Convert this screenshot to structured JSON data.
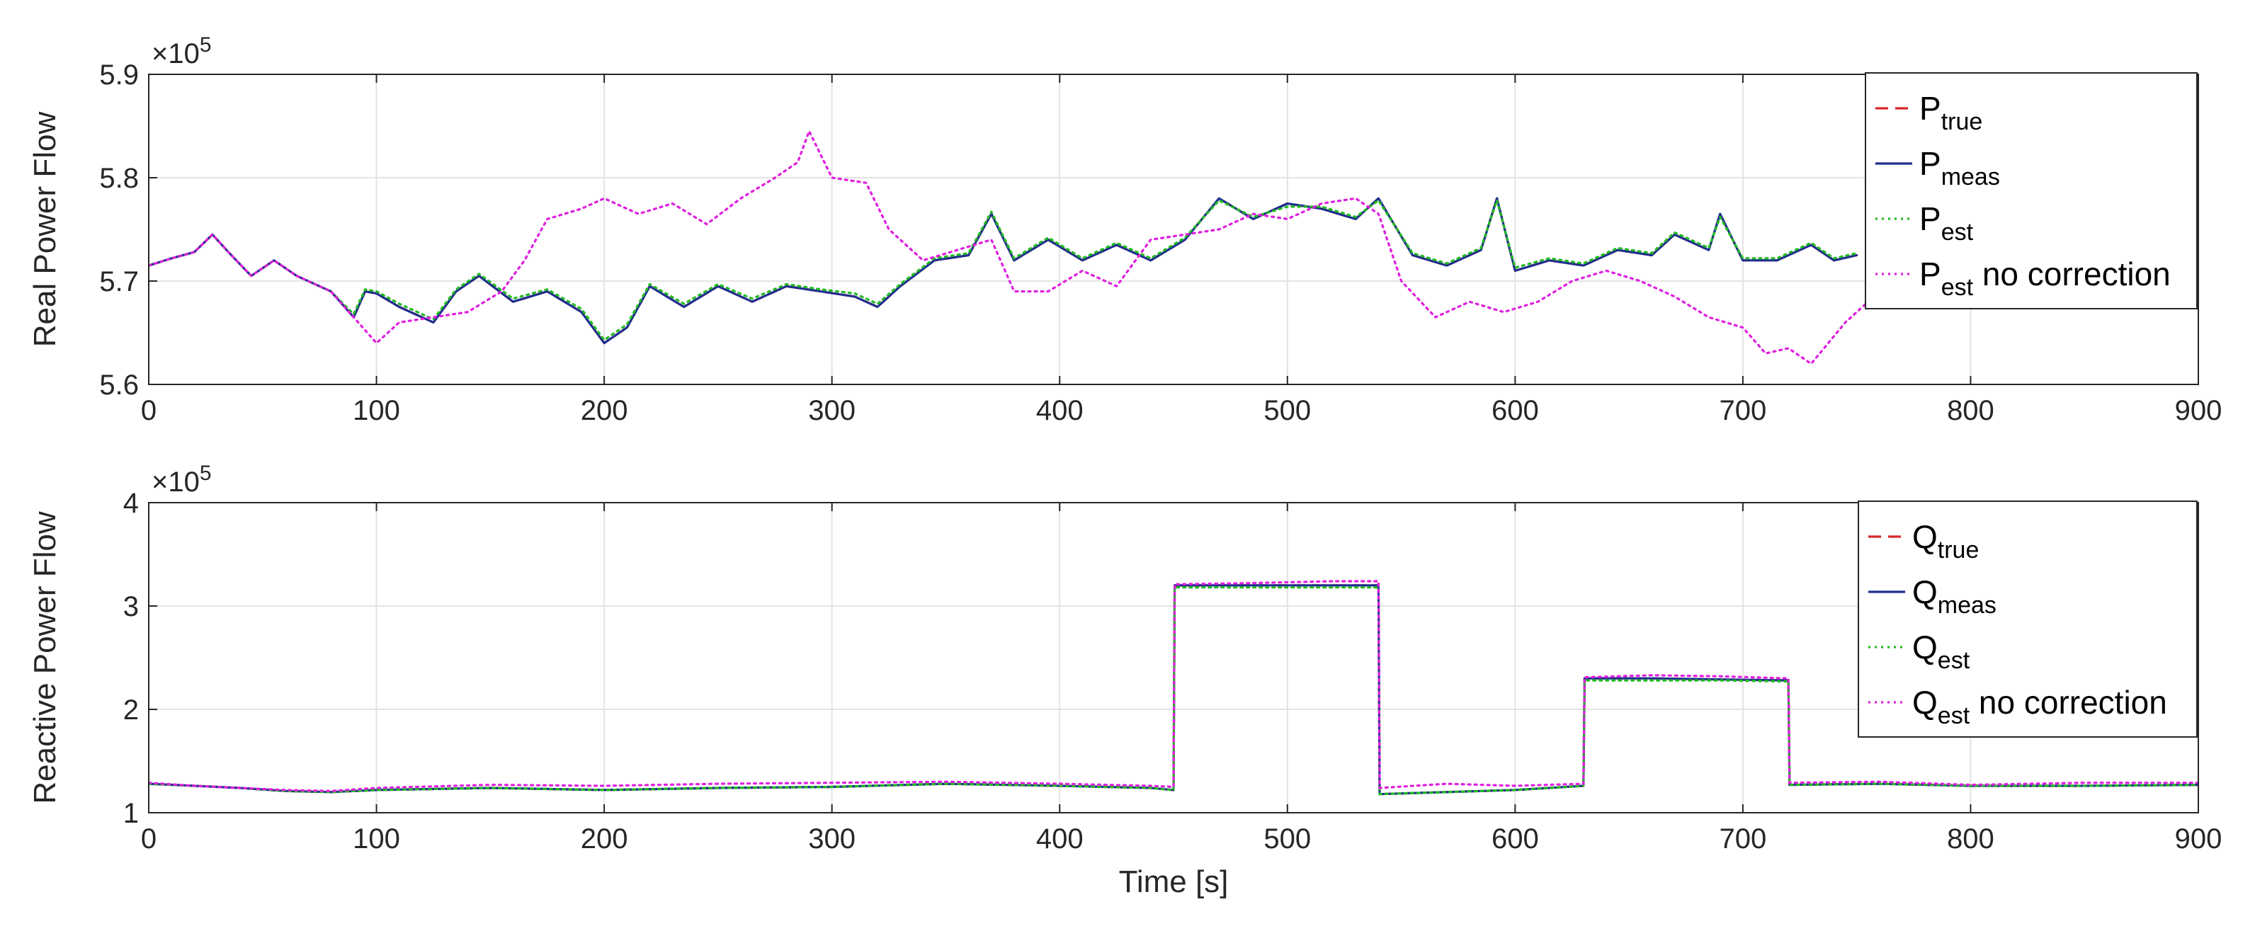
{
  "chart_data": [
    {
      "type": "line",
      "ylabel": "Real Power Flow",
      "xlabel": "",
      "exponent": "×10",
      "exponent_power": "5",
      "xlim": [
        0,
        900
      ],
      "ylim": [
        5.6,
        5.9
      ],
      "xticks": [
        "0",
        "100",
        "200",
        "300",
        "400",
        "500",
        "600",
        "700",
        "800",
        "900"
      ],
      "yticks": [
        "5.6",
        "5.7",
        "5.8",
        "5.9"
      ],
      "grid": true,
      "legend_position": "top-right",
      "legend": [
        {
          "base": "P",
          "sub": "true",
          "suffix": ""
        },
        {
          "base": "P",
          "sub": "meas",
          "suffix": ""
        },
        {
          "base": "P",
          "sub": "est",
          "suffix": ""
        },
        {
          "base": "P",
          "sub": "est",
          "suffix": " no correction"
        }
      ],
      "series": [
        {
          "color": "#d62728",
          "dash": "dashed",
          "x": [
            0,
            10,
            20,
            28,
            35,
            45,
            55,
            65,
            80,
            90,
            95,
            100,
            110,
            125,
            135,
            145,
            160,
            175,
            190,
            200,
            210,
            220,
            235,
            250,
            265,
            280,
            295,
            310,
            320,
            330,
            345,
            360,
            370,
            380,
            395,
            410,
            425,
            440,
            455,
            470,
            485,
            500,
            515,
            530,
            540,
            555,
            570,
            585,
            592,
            600,
            615,
            630,
            645,
            660,
            670,
            685,
            690,
            700,
            715,
            730,
            740,
            750
          ],
          "y": [
            5.715,
            5.722,
            5.728,
            5.745,
            5.728,
            5.705,
            5.72,
            5.705,
            5.69,
            5.665,
            5.69,
            5.688,
            5.675,
            5.66,
            5.69,
            5.705,
            5.68,
            5.69,
            5.67,
            5.64,
            5.655,
            5.695,
            5.675,
            5.695,
            5.68,
            5.695,
            5.69,
            5.685,
            5.675,
            5.695,
            5.72,
            5.725,
            5.765,
            5.72,
            5.74,
            5.72,
            5.735,
            5.72,
            5.74,
            5.78,
            5.76,
            5.775,
            5.77,
            5.76,
            5.78,
            5.725,
            5.715,
            5.73,
            5.78,
            5.71,
            5.72,
            5.715,
            5.73,
            5.725,
            5.745,
            5.73,
            5.765,
            5.72,
            5.72,
            5.735,
            5.72,
            5.725
          ]
        },
        {
          "color": "#1f2e8f",
          "dash": "solid",
          "x": [
            0,
            10,
            20,
            28,
            35,
            45,
            55,
            65,
            80,
            90,
            95,
            100,
            110,
            125,
            135,
            145,
            160,
            175,
            190,
            200,
            210,
            220,
            235,
            250,
            265,
            280,
            295,
            310,
            320,
            330,
            345,
            360,
            370,
            380,
            395,
            410,
            425,
            440,
            455,
            470,
            485,
            500,
            515,
            530,
            540,
            555,
            570,
            585,
            592,
            600,
            615,
            630,
            645,
            660,
            670,
            685,
            690,
            700,
            715,
            730,
            740,
            750
          ],
          "y": [
            5.715,
            5.722,
            5.728,
            5.745,
            5.728,
            5.705,
            5.72,
            5.705,
            5.69,
            5.665,
            5.69,
            5.688,
            5.675,
            5.66,
            5.69,
            5.705,
            5.68,
            5.69,
            5.67,
            5.64,
            5.655,
            5.695,
            5.675,
            5.695,
            5.68,
            5.695,
            5.69,
            5.685,
            5.675,
            5.695,
            5.72,
            5.725,
            5.765,
            5.72,
            5.74,
            5.72,
            5.735,
            5.72,
            5.74,
            5.78,
            5.76,
            5.775,
            5.77,
            5.76,
            5.78,
            5.725,
            5.715,
            5.73,
            5.78,
            5.71,
            5.72,
            5.715,
            5.73,
            5.725,
            5.745,
            5.73,
            5.765,
            5.72,
            5.72,
            5.735,
            5.72,
            5.725
          ]
        },
        {
          "color": "#22bb22",
          "dash": "dotted",
          "x": [
            0,
            10,
            20,
            28,
            35,
            45,
            55,
            65,
            80,
            90,
            95,
            100,
            110,
            125,
            135,
            145,
            160,
            175,
            190,
            200,
            210,
            220,
            235,
            250,
            265,
            280,
            295,
            310,
            320,
            330,
            345,
            360,
            370,
            380,
            395,
            410,
            425,
            440,
            455,
            470,
            485,
            500,
            515,
            530,
            540,
            555,
            570,
            585,
            592,
            600,
            615,
            630,
            645,
            660,
            670,
            685,
            690,
            700,
            715,
            730,
            740,
            750
          ],
          "y": [
            5.715,
            5.722,
            5.728,
            5.745,
            5.728,
            5.705,
            5.72,
            5.705,
            5.69,
            5.668,
            5.692,
            5.69,
            5.678,
            5.663,
            5.692,
            5.707,
            5.683,
            5.692,
            5.673,
            5.643,
            5.658,
            5.697,
            5.678,
            5.697,
            5.683,
            5.697,
            5.692,
            5.688,
            5.678,
            5.697,
            5.722,
            5.727,
            5.767,
            5.722,
            5.742,
            5.722,
            5.737,
            5.722,
            5.742,
            5.778,
            5.762,
            5.772,
            5.772,
            5.762,
            5.778,
            5.727,
            5.717,
            5.732,
            5.778,
            5.713,
            5.722,
            5.717,
            5.732,
            5.727,
            5.747,
            5.732,
            5.762,
            5.722,
            5.722,
            5.737,
            5.722,
            5.727
          ]
        },
        {
          "color": "#e01ee0",
          "dash": "dotted",
          "x": [
            0,
            10,
            20,
            28,
            35,
            45,
            55,
            65,
            80,
            90,
            100,
            110,
            125,
            140,
            155,
            165,
            175,
            190,
            200,
            215,
            230,
            245,
            260,
            275,
            285,
            290,
            300,
            315,
            325,
            340,
            355,
            370,
            380,
            395,
            410,
            425,
            440,
            455,
            470,
            485,
            500,
            515,
            530,
            540,
            550,
            565,
            580,
            595,
            610,
            625,
            640,
            655,
            670,
            685,
            700,
            710,
            720,
            730,
            745,
            755
          ],
          "y": [
            5.715,
            5.722,
            5.728,
            5.745,
            5.728,
            5.705,
            5.72,
            5.705,
            5.69,
            5.665,
            5.64,
            5.66,
            5.665,
            5.67,
            5.69,
            5.72,
            5.76,
            5.77,
            5.78,
            5.765,
            5.775,
            5.755,
            5.78,
            5.8,
            5.815,
            5.845,
            5.8,
            5.795,
            5.75,
            5.72,
            5.73,
            5.74,
            5.69,
            5.69,
            5.71,
            5.695,
            5.74,
            5.745,
            5.75,
            5.765,
            5.76,
            5.775,
            5.78,
            5.765,
            5.7,
            5.665,
            5.68,
            5.67,
            5.68,
            5.7,
            5.71,
            5.7,
            5.685,
            5.665,
            5.655,
            5.63,
            5.635,
            5.62,
            5.66,
            5.68
          ]
        }
      ]
    },
    {
      "type": "line",
      "ylabel": "Reactive Power Flow",
      "xlabel": "Time [s]",
      "exponent": "×10",
      "exponent_power": "5",
      "xlim": [
        0,
        900
      ],
      "ylim": [
        1,
        4
      ],
      "xticks": [
        "0",
        "100",
        "200",
        "300",
        "400",
        "500",
        "600",
        "700",
        "800",
        "900"
      ],
      "yticks": [
        "1",
        "2",
        "3",
        "4"
      ],
      "grid": true,
      "legend_position": "top-right",
      "legend": [
        {
          "base": "Q",
          "sub": "true",
          "suffix": ""
        },
        {
          "base": "Q",
          "sub": "meas",
          "suffix": ""
        },
        {
          "base": "Q",
          "sub": "est",
          "suffix": ""
        },
        {
          "base": "Q",
          "sub": "est",
          "suffix": " no correction"
        }
      ],
      "series": [
        {
          "color": "#d62728",
          "dash": "dashed",
          "x": [
            0,
            20,
            40,
            60,
            80,
            100,
            150,
            200,
            250,
            300,
            350,
            400,
            440,
            450,
            450.5,
            480,
            520,
            540,
            540.5,
            570,
            600,
            630,
            630.5,
            660,
            690,
            720,
            720.5,
            760,
            800,
            850,
            900
          ],
          "y": [
            1.28,
            1.26,
            1.24,
            1.21,
            1.2,
            1.22,
            1.24,
            1.22,
            1.24,
            1.25,
            1.28,
            1.26,
            1.24,
            1.22,
            3.2,
            3.2,
            3.2,
            3.2,
            1.18,
            1.2,
            1.22,
            1.26,
            2.3,
            2.3,
            2.29,
            2.28,
            1.27,
            1.28,
            1.26,
            1.26,
            1.27
          ]
        },
        {
          "color": "#1f2e8f",
          "dash": "solid",
          "x": [
            0,
            20,
            40,
            60,
            80,
            100,
            150,
            200,
            250,
            300,
            350,
            400,
            440,
            450,
            450.5,
            480,
            520,
            540,
            540.5,
            570,
            600,
            630,
            630.5,
            660,
            690,
            720,
            720.5,
            760,
            800,
            850,
            900
          ],
          "y": [
            1.28,
            1.26,
            1.24,
            1.21,
            1.2,
            1.22,
            1.24,
            1.22,
            1.24,
            1.25,
            1.28,
            1.26,
            1.24,
            1.22,
            3.2,
            3.2,
            3.2,
            3.2,
            1.18,
            1.2,
            1.22,
            1.26,
            2.3,
            2.3,
            2.29,
            2.28,
            1.27,
            1.28,
            1.26,
            1.26,
            1.27
          ]
        },
        {
          "color": "#22bb22",
          "dash": "dotted",
          "x": [
            0,
            20,
            40,
            60,
            80,
            100,
            150,
            200,
            250,
            300,
            350,
            400,
            440,
            450,
            450.5,
            480,
            520,
            540,
            540.5,
            570,
            600,
            630,
            630.5,
            660,
            690,
            720,
            720.5,
            760,
            800,
            850,
            900
          ],
          "y": [
            1.28,
            1.26,
            1.24,
            1.21,
            1.2,
            1.22,
            1.24,
            1.22,
            1.24,
            1.25,
            1.28,
            1.26,
            1.24,
            1.22,
            3.18,
            3.18,
            3.18,
            3.18,
            1.18,
            1.2,
            1.22,
            1.26,
            2.28,
            2.28,
            2.28,
            2.27,
            1.27,
            1.28,
            1.26,
            1.26,
            1.27
          ]
        },
        {
          "color": "#e01ee0",
          "dash": "dotted",
          "x": [
            0,
            20,
            40,
            60,
            80,
            100,
            150,
            200,
            250,
            300,
            350,
            400,
            440,
            450,
            450.5,
            480,
            520,
            540,
            540.5,
            570,
            600,
            630,
            630.5,
            660,
            690,
            720,
            720.5,
            760,
            800,
            850,
            900
          ],
          "y": [
            1.29,
            1.26,
            1.24,
            1.22,
            1.21,
            1.24,
            1.27,
            1.26,
            1.28,
            1.29,
            1.3,
            1.28,
            1.26,
            1.25,
            3.21,
            3.22,
            3.24,
            3.24,
            1.24,
            1.28,
            1.26,
            1.28,
            2.31,
            2.33,
            2.32,
            2.3,
            1.29,
            1.3,
            1.27,
            1.29,
            1.29
          ]
        }
      ]
    }
  ]
}
